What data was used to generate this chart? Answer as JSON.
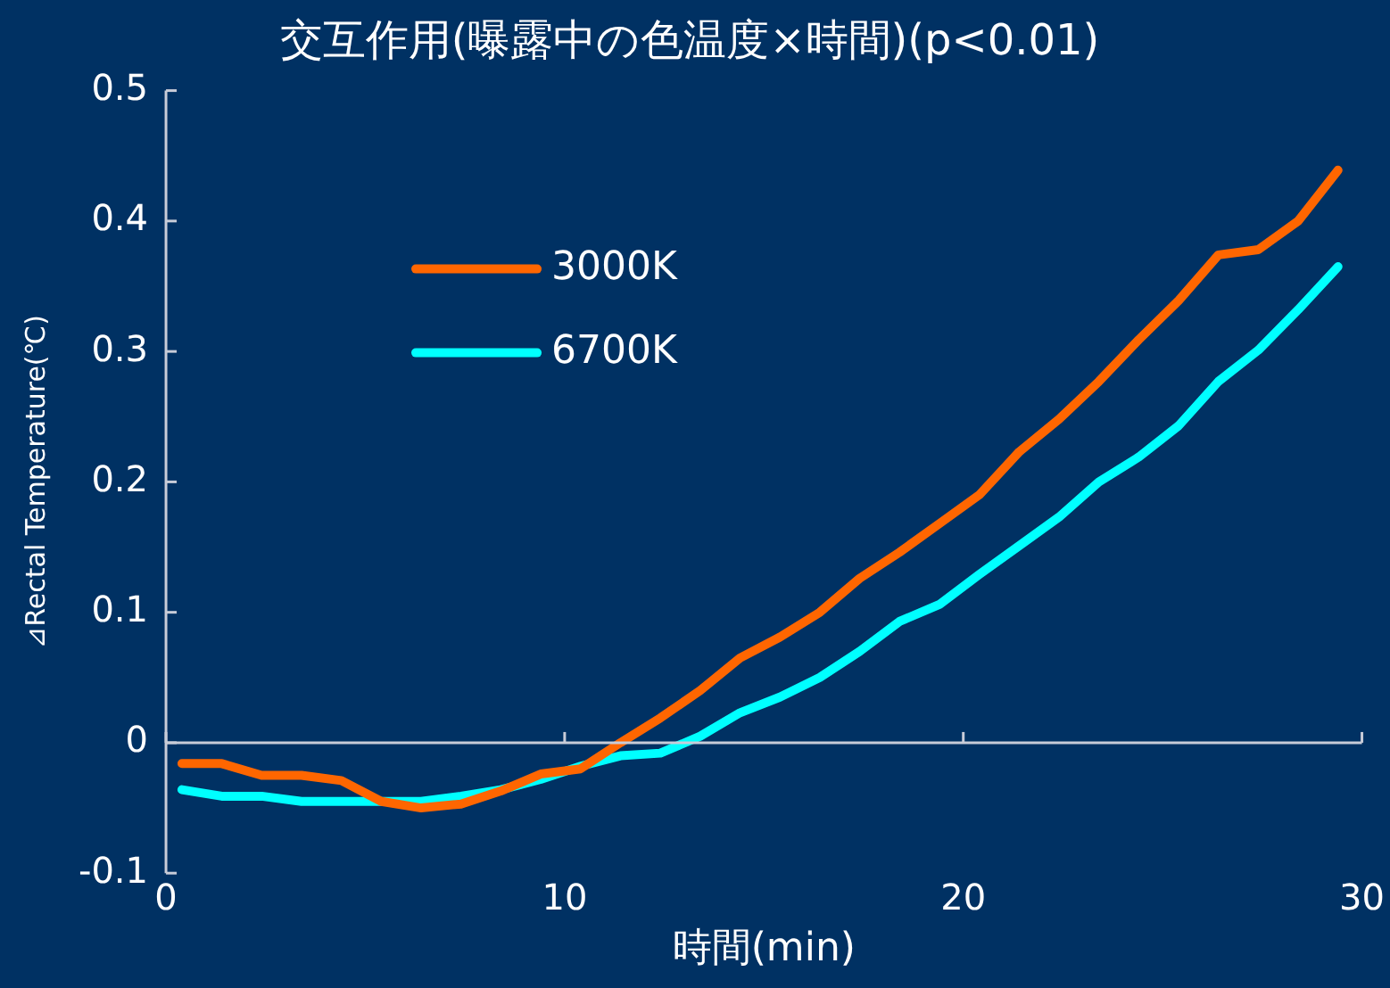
{
  "chart_data": {
    "type": "line",
    "title": "交互作用(曝露中の色温度×時間)(p<0.01)",
    "xlabel": "時間(min)",
    "ylabel": "⊿Rectal Temperature(℃)",
    "x": [
      0.4,
      1.4,
      2.4,
      3.4,
      4.4,
      5.4,
      6.4,
      7.4,
      8.4,
      9.4,
      10.4,
      11.4,
      12.4,
      13.4,
      14.4,
      15.4,
      16.4,
      17.4,
      18.4,
      19.4,
      20.4,
      21.4,
      22.4,
      23.4,
      24.4,
      25.4,
      26.4,
      27.4,
      28.4,
      29.4
    ],
    "series": [
      {
        "name": "3000K",
        "color": "#ff6600",
        "values": [
          -0.016,
          -0.016,
          -0.025,
          -0.025,
          -0.029,
          -0.045,
          -0.05,
          -0.047,
          -0.037,
          -0.024,
          -0.02,
          0,
          0.019,
          0.04,
          0.065,
          0.081,
          0.1,
          0.126,
          0.146,
          0.168,
          0.19,
          0.223,
          0.248,
          0.277,
          0.309,
          0.339,
          0.374,
          0.378,
          0.4,
          0.439
        ]
      },
      {
        "name": "6700K",
        "color": "#00ffff",
        "values": [
          -0.036,
          -0.041,
          -0.041,
          -0.045,
          -0.045,
          -0.045,
          -0.045,
          -0.041,
          -0.036,
          -0.028,
          -0.018,
          -0.01,
          -0.008,
          0.005,
          0.023,
          0.035,
          0.05,
          0.07,
          0.093,
          0.106,
          0.129,
          0.151,
          0.173,
          0.2,
          0.219,
          0.243,
          0.277,
          0.301,
          0.332,
          0.365
        ]
      }
    ],
    "xlim": [
      0,
      30
    ],
    "xticks": [
      0,
      10,
      20,
      30
    ],
    "ylim": [
      -0.1,
      0.5
    ],
    "yticks": [
      -0.1,
      0,
      0.1,
      0.2,
      0.3,
      0.4,
      0.5
    ],
    "ref_lines": [
      {
        "axis": "y",
        "value": 0
      }
    ],
    "grid": false,
    "legend": "top left",
    "marker": "none",
    "line_style": "solid"
  }
}
